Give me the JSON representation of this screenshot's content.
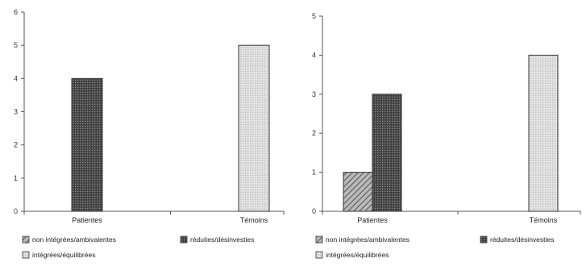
{
  "chart_data": [
    {
      "type": "bar",
      "categories": [
        "Patientes",
        "Témoins"
      ],
      "ylim": [
        0,
        6
      ],
      "yticks": [
        "0",
        "1",
        "2",
        "3",
        "4",
        "5",
        "6"
      ],
      "grid": false,
      "legend_position": "bottom",
      "series": [
        {
          "name": "non intégrées/ambivalentes",
          "values": [
            0,
            0
          ],
          "color": "#a8a8a8",
          "pattern": "hatch"
        },
        {
          "name": "réduites/désinvesties",
          "values": [
            4,
            0
          ],
          "color": "#4a4a4a",
          "pattern": "dots"
        },
        {
          "name": "intégrées/équilibrées",
          "values": [
            0,
            5
          ],
          "color": "#d6d6d6",
          "pattern": "light"
        }
      ]
    },
    {
      "type": "bar",
      "categories": [
        "Patientes",
        "Témoins"
      ],
      "ylim": [
        0,
        5
      ],
      "yticks": [
        "0",
        "1",
        "2",
        "3",
        "4",
        "5"
      ],
      "grid": false,
      "legend_position": "bottom",
      "series": [
        {
          "name": "non intégrées/ambivalentes",
          "values": [
            1,
            0
          ],
          "color": "#a8a8a8",
          "pattern": "hatch"
        },
        {
          "name": "réduites/désinvesties",
          "values": [
            3,
            0
          ],
          "color": "#4a4a4a",
          "pattern": "dots"
        },
        {
          "name": "intégrées/équilibrées",
          "values": [
            0,
            4
          ],
          "color": "#d6d6d6",
          "pattern": "light"
        }
      ]
    }
  ]
}
